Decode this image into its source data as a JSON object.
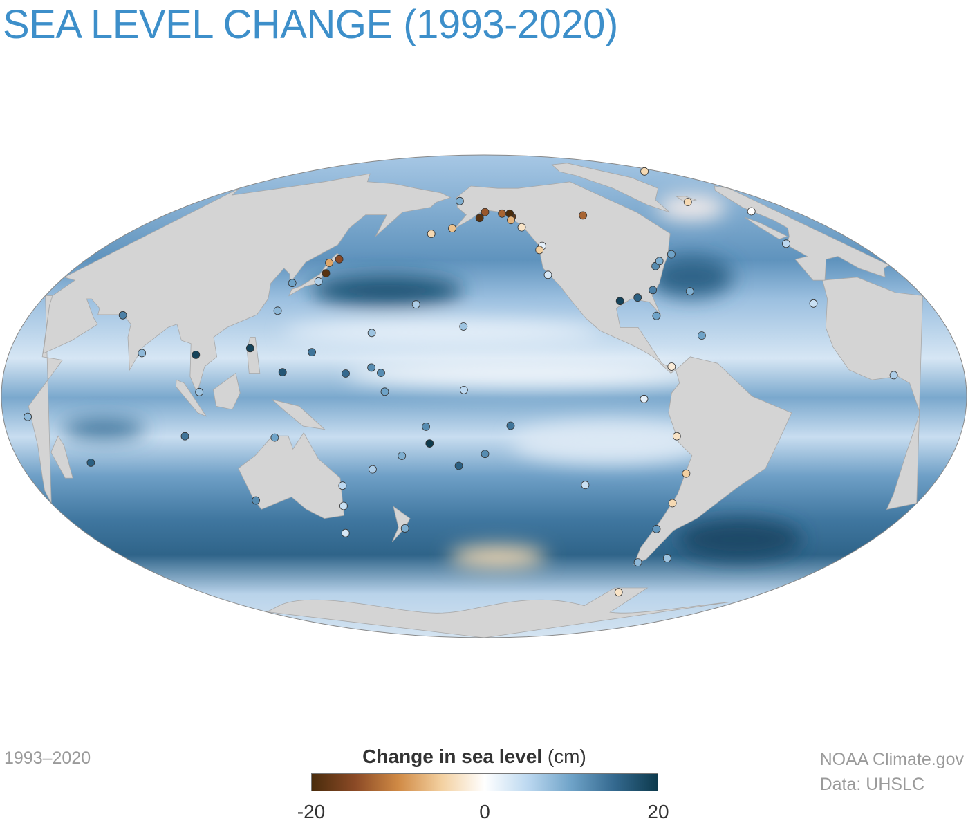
{
  "title": "SEA LEVEL CHANGE (1993-2020)",
  "date_range": "1993–2020",
  "credits": {
    "line1": "NOAA Climate.gov",
    "line2": "Data: UHSLC"
  },
  "legend": {
    "title_bold": "Change in sea level",
    "title_unit": "(cm)",
    "min_label": "-20",
    "mid_label": "0",
    "max_label": "20",
    "range": [
      -20,
      20
    ],
    "color_stops": [
      {
        "value": -20,
        "color": "#4a2c0c"
      },
      {
        "value": -15,
        "color": "#8b4a26"
      },
      {
        "value": -10,
        "color": "#d08a45"
      },
      {
        "value": -5,
        "color": "#f3d0a0"
      },
      {
        "value": 0,
        "color": "#ffffff"
      },
      {
        "value": 5,
        "color": "#bcd8f0"
      },
      {
        "value": 10,
        "color": "#6fa3c8"
      },
      {
        "value": 15,
        "color": "#34698f"
      },
      {
        "value": 20,
        "color": "#0d3a4d"
      }
    ]
  },
  "map": {
    "projection": "Mollweide",
    "center_longitude": -150,
    "land_color": "#d4d4d4",
    "ocean_base_color": "#8db4d6",
    "stations": [
      {
        "lon": -158,
        "lat": 21.3,
        "value": 7
      },
      {
        "lon": -134.4,
        "lat": 58.3,
        "value": -18
      },
      {
        "lon": -135.3,
        "lat": 59.5,
        "value": -20
      },
      {
        "lon": -149.4,
        "lat": 60.1,
        "value": -14
      },
      {
        "lon": -152.4,
        "lat": 57.8,
        "value": -19
      },
      {
        "lon": -139.7,
        "lat": 59.5,
        "value": -13
      },
      {
        "lon": -135.3,
        "lat": 57.0,
        "value": -7
      },
      {
        "lon": -130.3,
        "lat": 54.3,
        "value": -3
      },
      {
        "lon": -122.3,
        "lat": 47.6,
        "value": 2
      },
      {
        "lon": -124.0,
        "lat": 46.2,
        "value": -5
      },
      {
        "lon": -122.4,
        "lat": 37.8,
        "value": 3
      },
      {
        "lon": -94.2,
        "lat": 58.8,
        "value": -13
      },
      {
        "lon": -94.8,
        "lat": 29.3,
        "value": 19
      },
      {
        "lon": -87.2,
        "lat": 30.4,
        "value": 16
      },
      {
        "lon": -81.8,
        "lat": 24.6,
        "value": 10
      },
      {
        "lon": -79.9,
        "lat": 32.8,
        "value": 13
      },
      {
        "lon": -74.0,
        "lat": 40.7,
        "value": 12
      },
      {
        "lon": -71.0,
        "lat": 42.4,
        "value": 9
      },
      {
        "lon": -63.6,
        "lat": 44.7,
        "value": 10
      },
      {
        "lon": -64.7,
        "lat": 32.4,
        "value": 9
      },
      {
        "lon": -66.1,
        "lat": 18.5,
        "value": 10
      },
      {
        "lon": -79.5,
        "lat": 9.0,
        "value": -2
      },
      {
        "lon": -90.3,
        "lat": -0.8,
        "value": 2
      },
      {
        "lon": -77.1,
        "lat": -12.1,
        "value": -3
      },
      {
        "lon": -70.4,
        "lat": -23.6,
        "value": -5
      },
      {
        "lon": -71.6,
        "lat": -33.0,
        "value": -4
      },
      {
        "lon": -109.4,
        "lat": -27.2,
        "value": 4
      },
      {
        "lon": -73.0,
        "lat": -41.5,
        "value": 11
      },
      {
        "lon": -70.9,
        "lat": -53.2,
        "value": 8
      },
      {
        "lon": -57.9,
        "lat": -51.7,
        "value": 7
      },
      {
        "lon": -64.0,
        "lat": -64.8,
        "value": -3
      },
      {
        "lon": -21.9,
        "lat": 64.1,
        "value": -4
      },
      {
        "lon": -4.5,
        "lat": 48.4,
        "value": 5
      },
      {
        "lon": 5.3,
        "lat": 60.4,
        "value": 0
      },
      {
        "lon": 15.0,
        "lat": 78.2,
        "value": -4
      },
      {
        "lon": 3.4,
        "lat": 6.4,
        "value": 6
      },
      {
        "lon": -16.9,
        "lat": 28.5,
        "value": 4
      },
      {
        "lon": 139.8,
        "lat": 35.6,
        "value": 6
      },
      {
        "lon": 140.7,
        "lat": 41.8,
        "value": -8
      },
      {
        "lon": 144.4,
        "lat": 43.0,
        "value": -15
      },
      {
        "lon": 141.5,
        "lat": 38.3,
        "value": -19
      },
      {
        "lon": 127.7,
        "lat": 26.2,
        "value": 8
      },
      {
        "lon": 129.0,
        "lat": 35.1,
        "value": 10
      },
      {
        "lon": 121.0,
        "lat": 14.6,
        "value": 19
      },
      {
        "lon": 144.7,
        "lat": 13.4,
        "value": 14
      },
      {
        "lon": 167.7,
        "lat": 8.7,
        "value": 12
      },
      {
        "lon": 171.4,
        "lat": 7.1,
        "value": 12
      },
      {
        "lon": -170.7,
        "lat": -14.3,
        "value": 20
      },
      {
        "lon": 178.4,
        "lat": -18.1,
        "value": 9
      },
      {
        "lon": 166.4,
        "lat": -22.3,
        "value": 6
      },
      {
        "lon": 153.2,
        "lat": -27.4,
        "value": 5
      },
      {
        "lon": 151.2,
        "lat": -33.9,
        "value": 4
      },
      {
        "lon": 147.3,
        "lat": -42.9,
        "value": 3
      },
      {
        "lon": 115.7,
        "lat": -32.1,
        "value": 12
      },
      {
        "lon": 130.8,
        "lat": -12.5,
        "value": 10
      },
      {
        "lon": 57.5,
        "lat": -20.2,
        "value": 16
      },
      {
        "lon": 96.9,
        "lat": -12.1,
        "value": 14
      },
      {
        "lon": 80.3,
        "lat": 13.1,
        "value": 8
      },
      {
        "lon": 103.8,
        "lat": 1.3,
        "value": 7
      },
      {
        "lon": 100.9,
        "lat": 12.6,
        "value": 19
      },
      {
        "lon": 67.0,
        "lat": 24.8,
        "value": 13
      },
      {
        "lon": 39.2,
        "lat": -6.2,
        "value": 8
      },
      {
        "lon": 174.8,
        "lat": -41.3,
        "value": 9
      },
      {
        "lon": -149.6,
        "lat": -17.5,
        "value": 12
      },
      {
        "lon": -159.8,
        "lat": -21.2,
        "value": 16
      },
      {
        "lon": -157.5,
        "lat": 1.9,
        "value": 5
      },
      {
        "lon": -177.4,
        "lat": 28.2,
        "value": 6
      },
      {
        "lon": 166.6,
        "lat": 19.3,
        "value": 7
      },
      {
        "lon": -176.6,
        "lat": 51.9,
        "value": -4
      },
      {
        "lon": -166.5,
        "lat": 53.9,
        "value": -6
      },
      {
        "lon": -165.4,
        "lat": 64.5,
        "value": 9
      },
      {
        "lon": -140.0,
        "lat": -8.9,
        "value": 14
      },
      {
        "lon": -171.8,
        "lat": -9.2,
        "value": 12
      },
      {
        "lon": 173.0,
        "lat": 1.4,
        "value": 10
      },
      {
        "lon": 158.2,
        "lat": 6.9,
        "value": 15
      },
      {
        "lon": 134.5,
        "lat": 7.3,
        "value": 17
      }
    ]
  }
}
